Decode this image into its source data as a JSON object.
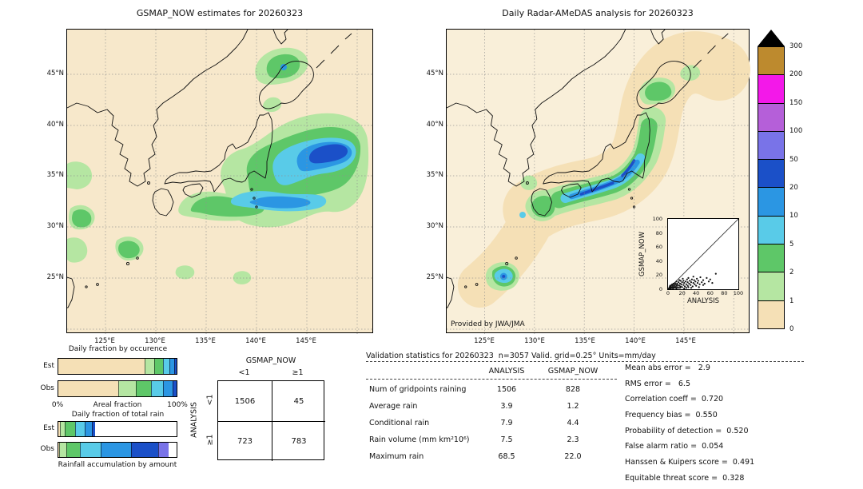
{
  "colorbar": {
    "units": "mm/day",
    "levels": [
      0,
      1,
      2,
      5,
      10,
      20,
      50,
      100,
      150,
      200,
      300
    ],
    "colors": [
      "#f5e0b6",
      "#b5e6a2",
      "#5ec768",
      "#59cbe8",
      "#2b96e3",
      "#1b50c8",
      "#7973e8",
      "#b55fd9",
      "#f318e9",
      "#bd8a2e"
    ],
    "over_color": "#000000"
  },
  "validation": {
    "header": "Validation statistics for 20260323  n=3057 Valid. grid=0.25° Units=mm/day",
    "col1": "ANALYSIS",
    "col2": "GSMAP_NOW",
    "rows": [
      {
        "label": "Num of gridpoints raining",
        "a": "1506",
        "g": "828"
      },
      {
        "label": "Average rain",
        "a": "3.9",
        "g": "1.2"
      },
      {
        "label": "Conditional rain",
        "a": "7.9",
        "g": "4.4"
      },
      {
        "label": "Rain volume (mm km²10⁶)",
        "a": "7.5",
        "g": "2.3"
      },
      {
        "label": "Maximum rain",
        "a": "68.5",
        "g": "22.0"
      }
    ],
    "score_lines": [
      "Mean abs error =   2.9",
      "RMS error =   6.5",
      "Correlation coeff =  0.720",
      "Frequency bias =  0.550",
      "Probability of detection =  0.520",
      "False alarm ratio =  0.054",
      "Hanssen & Kuipers score =  0.491",
      "Equitable threat score =  0.328"
    ]
  },
  "chart_data": [
    {
      "type": "heatmap",
      "subtype": "precipitation-map",
      "title": "GSMAP_NOW estimates for 20260323",
      "units": "mm/day",
      "lat_ticks": [
        "45°N",
        "40°N",
        "35°N",
        "30°N",
        "25°N"
      ],
      "lon_ticks": [
        "125°E",
        "130°E",
        "135°E",
        "140°E",
        "145°E"
      ],
      "levels": [
        0,
        1,
        2,
        5,
        10,
        20,
        50,
        100,
        150,
        200,
        300
      ],
      "summary": "Broad 1-10 mm/day rain shield over the Pacific south and east of Honshu with an embedded 10-50 mm/day core near 35-37N 143-147E; 1-5 mm/day patches over Hokkaido, near 125E in the East China Sea and south of Kyushu."
    },
    {
      "type": "heatmap",
      "subtype": "precipitation-map",
      "title": "Daily Radar-AMeDAS analysis for 20260323",
      "credit": "Provided by JWA/JMA",
      "units": "mm/day",
      "lat_ticks": [
        "45°N",
        "40°N",
        "35°N",
        "30°N",
        "25°N"
      ],
      "lon_ticks": [
        "125°E",
        "130°E",
        "135°E",
        "140°E",
        "145°E"
      ],
      "levels": [
        0,
        1,
        2,
        5,
        10,
        20,
        50,
        100,
        150,
        200,
        300
      ],
      "summary": "Radar coverage band (0-1 mm/day) along the Japanese archipelago; 2-50 mm/day rain band hugging the Pacific coast from Kyushu and Shikoku to Kanto; isolated 10-50 mm/day cell near Okinawa; light rain over Hokkaido."
    },
    {
      "type": "scatter",
      "title": "GSMAP_NOW vs ANALYSIS",
      "xlabel": "ANALYSIS",
      "ylabel": "GSMAP_NOW",
      "xlim": [
        0,
        100
      ],
      "ylim": [
        0,
        100
      ],
      "ticks": [
        0,
        20,
        40,
        60,
        80,
        100
      ],
      "diagonal": true,
      "points": [
        [
          1,
          1
        ],
        [
          2,
          1
        ],
        [
          2,
          3
        ],
        [
          3,
          2
        ],
        [
          3,
          5
        ],
        [
          4,
          1
        ],
        [
          4,
          4
        ],
        [
          5,
          2
        ],
        [
          5,
          6
        ],
        [
          6,
          3
        ],
        [
          6,
          7
        ],
        [
          7,
          1
        ],
        [
          7,
          5
        ],
        [
          8,
          3
        ],
        [
          8,
          8
        ],
        [
          9,
          2
        ],
        [
          9,
          6
        ],
        [
          10,
          4
        ],
        [
          10,
          9
        ],
        [
          11,
          2
        ],
        [
          11,
          7
        ],
        [
          12,
          1
        ],
        [
          12,
          5
        ],
        [
          12,
          11
        ],
        [
          13,
          3
        ],
        [
          13,
          8
        ],
        [
          14,
          6
        ],
        [
          15,
          2
        ],
        [
          15,
          10
        ],
        [
          16,
          5
        ],
        [
          16,
          13
        ],
        [
          17,
          2
        ],
        [
          17,
          8
        ],
        [
          18,
          4
        ],
        [
          18,
          12
        ],
        [
          19,
          7
        ],
        [
          20,
          3
        ],
        [
          20,
          10
        ],
        [
          21,
          15
        ],
        [
          22,
          6
        ],
        [
          22,
          12
        ],
        [
          23,
          1
        ],
        [
          23,
          9
        ],
        [
          24,
          4
        ],
        [
          25,
          11
        ],
        [
          26,
          2
        ],
        [
          26,
          7
        ],
        [
          27,
          14
        ],
        [
          28,
          5
        ],
        [
          28,
          10
        ],
        [
          29,
          3
        ],
        [
          29,
          16
        ],
        [
          30,
          8
        ],
        [
          31,
          12
        ],
        [
          32,
          6
        ],
        [
          33,
          2
        ],
        [
          33,
          10
        ],
        [
          34,
          14
        ],
        [
          35,
          4
        ],
        [
          36,
          9
        ],
        [
          36,
          18
        ],
        [
          37,
          13
        ],
        [
          38,
          7
        ],
        [
          39,
          11
        ],
        [
          40,
          5
        ],
        [
          41,
          15
        ],
        [
          42,
          9
        ],
        [
          43,
          12
        ],
        [
          44,
          3
        ],
        [
          45,
          7
        ],
        [
          46,
          17
        ],
        [
          48,
          10
        ],
        [
          50,
          6
        ],
        [
          50,
          13
        ],
        [
          52,
          8
        ],
        [
          55,
          16
        ],
        [
          58,
          11
        ],
        [
          60,
          14
        ],
        [
          63,
          9
        ],
        [
          68,
          22
        ]
      ]
    },
    {
      "type": "bar",
      "stacked": true,
      "orientation": "horizontal",
      "title": "Daily fraction by occurence",
      "xlabel": "Areal fraction",
      "x0_label": "0%",
      "x100_label": "100%",
      "categories": [
        "Est",
        "Obs"
      ],
      "legend": "segments colored by mm/day class (see colorbar levels)",
      "series": [
        {
          "name": "Est",
          "segments": [
            {
              "level": 0,
              "frac": 0.729
            },
            {
              "level": 1,
              "frac": 0.083
            },
            {
              "level": 2,
              "frac": 0.071
            },
            {
              "level": 3,
              "frac": 0.056
            },
            {
              "level": 4,
              "frac": 0.04
            },
            {
              "level": 5,
              "frac": 0.021
            }
          ]
        },
        {
          "name": "Obs",
          "segments": [
            {
              "level": 0,
              "frac": 0.507
            },
            {
              "level": 1,
              "frac": 0.148
            },
            {
              "level": 2,
              "frac": 0.127
            },
            {
              "level": 3,
              "frac": 0.103
            },
            {
              "level": 4,
              "frac": 0.079
            },
            {
              "level": 5,
              "frac": 0.036
            }
          ]
        }
      ]
    },
    {
      "type": "bar",
      "stacked": true,
      "orientation": "horizontal",
      "title": "Daily fraction of total rain",
      "xlabel": "Rainfall accumulation by amount",
      "categories": [
        "Est",
        "Obs"
      ],
      "series": [
        {
          "name": "Est",
          "segments": [
            {
              "level": 0,
              "frac": 0.012
            },
            {
              "level": 1,
              "frac": 0.045
            },
            {
              "level": 2,
              "frac": 0.083
            },
            {
              "level": 3,
              "frac": 0.082
            },
            {
              "level": 4,
              "frac": 0.062
            },
            {
              "level": 5,
              "frac": 0.026
            }
          ]
        },
        {
          "name": "Obs",
          "segments": [
            {
              "level": 0,
              "frac": 0.01
            },
            {
              "level": 1,
              "frac": 0.06
            },
            {
              "level": 2,
              "frac": 0.115
            },
            {
              "level": 3,
              "frac": 0.175
            },
            {
              "level": 4,
              "frac": 0.255
            },
            {
              "level": 5,
              "frac": 0.23
            },
            {
              "level": 6,
              "frac": 0.085
            }
          ]
        }
      ]
    },
    {
      "type": "table",
      "title": "Contingency table of raining gridpoints",
      "col_axis": "GSMAP_NOW",
      "row_axis": "ANALYSIS",
      "col_labels": [
        "<1",
        "≥1"
      ],
      "row_labels": [
        "<1",
        "≥1"
      ],
      "values": [
        [
          1506,
          45
        ],
        [
          723,
          783
        ]
      ]
    },
    {
      "type": "table",
      "title": "Validation statistics for 20260323  n=3057 Valid. grid=0.25° Units=mm/day",
      "columns": [
        "ANALYSIS",
        "GSMAP_NOW"
      ],
      "rows": [
        [
          "Num of gridpoints raining",
          1506,
          828
        ],
        [
          "Average rain",
          3.9,
          1.2
        ],
        [
          "Conditional rain",
          7.9,
          4.4
        ],
        [
          "Rain volume (mm km²10⁶)",
          7.5,
          2.3
        ],
        [
          "Maximum rain",
          68.5,
          22.0
        ]
      ],
      "scores": {
        "Mean abs error": 2.9,
        "RMS error": 6.5,
        "Correlation coeff": 0.72,
        "Frequency bias": 0.55,
        "Probability of detection": 0.52,
        "False alarm ratio": 0.054,
        "Hanssen & Kuipers score": 0.491,
        "Equitable threat score": 0.328
      }
    }
  ]
}
